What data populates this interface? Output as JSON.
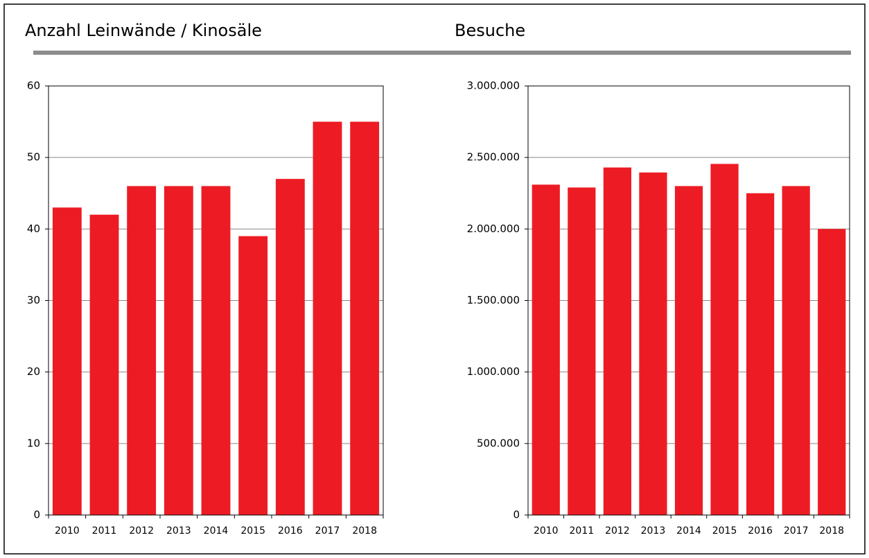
{
  "chart_data": [
    {
      "type": "bar",
      "title": "Anzahl Leinwände / Kinosäle",
      "categories": [
        "2010",
        "2011",
        "2012",
        "2013",
        "2014",
        "2015",
        "2016",
        "2017",
        "2018"
      ],
      "values": [
        43,
        42,
        46,
        46,
        46,
        39,
        47,
        55,
        55
      ],
      "color": "#ed1c24",
      "ylim": [
        0,
        60
      ],
      "yticks": [
        0,
        10,
        20,
        30,
        40,
        50,
        60
      ],
      "grid": true
    },
    {
      "type": "bar",
      "title": "Besuche",
      "categories": [
        "2010",
        "2011",
        "2012",
        "2013",
        "2014",
        "2015",
        "2016",
        "2017",
        "2018"
      ],
      "values": [
        2310000,
        2290000,
        2430000,
        2395000,
        2300000,
        2455000,
        2250000,
        2300000,
        2000000
      ],
      "color": "#ed1c24",
      "ylim": [
        0,
        3000000
      ],
      "yticks": [
        0,
        {
          "value": 500000,
          "label": "500.000"
        },
        {
          "value": 1000000,
          "label": "1.000.000"
        },
        {
          "value": 1500000,
          "label": "1.500.000"
        },
        {
          "value": 2000000,
          "label": "2.000.000"
        },
        {
          "value": 2500000,
          "label": "2.500.000"
        },
        {
          "value": 3000000,
          "label": "3.000.000"
        }
      ],
      "grid": true
    }
  ]
}
